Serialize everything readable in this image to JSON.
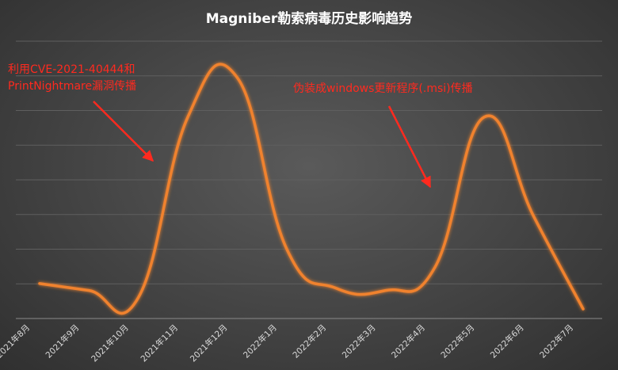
{
  "chart_data": {
    "type": "line",
    "title": "Magniber勒索病毒历史影响趋势",
    "xlabel": "",
    "ylabel": "",
    "categories": [
      "2021年8月",
      "2021年9月",
      "2021年10月",
      "2021年11月",
      "2021年12月",
      "2022年1月",
      "2022年2月",
      "2022年3月",
      "2022年4月",
      "2022年5月",
      "2022年6月",
      "2022年7月"
    ],
    "series": [
      {
        "values": [
          11,
          8,
          5,
          83,
          100,
          26,
          9,
          8,
          18,
          83,
          40,
          0
        ]
      }
    ],
    "ylim": [
      0,
      115
    ],
    "grid": true,
    "line_color": "#f0822d",
    "annotation_color": "#ff2a1f",
    "annotations": [
      {
        "lines": [
          "利用CVE-2021-40444和",
          "PrintNightmare漏洞传播"
        ],
        "points_to_category": "2021年11月"
      },
      {
        "lines": [
          "伪装成windows更新程序(.msi)传播"
        ],
        "points_to_category": "2022年4月"
      }
    ]
  }
}
